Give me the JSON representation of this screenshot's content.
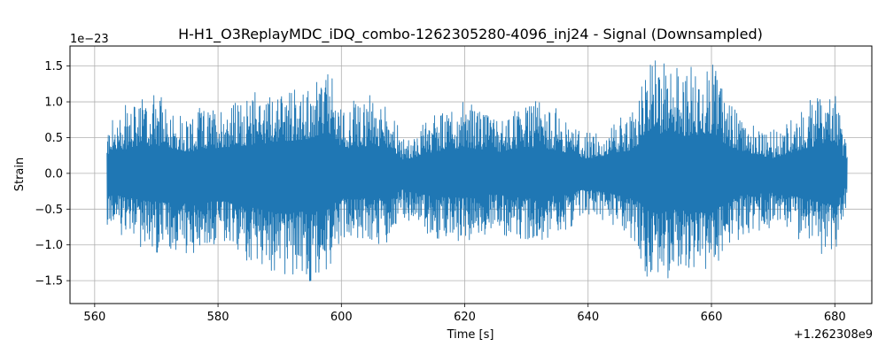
{
  "chart_data": {
    "type": "line",
    "title": "H-H1_O3ReplayMDC_iDQ_combo-1262305280-4096_inj24 - Signal (Downsampled)",
    "xlabel": "Time [s]",
    "ylabel": "Strain",
    "x_offset_label": "+1.262308e9",
    "y_scale_label": "1e−23",
    "xlim": [
      556,
      686
    ],
    "ylim": [
      -1.82,
      1.78
    ],
    "x_ticks": [
      560,
      580,
      600,
      620,
      640,
      660,
      680
    ],
    "x_tick_labels": [
      "560",
      "580",
      "600",
      "620",
      "640",
      "660",
      "680"
    ],
    "y_ticks": [
      -1.5,
      -1.0,
      -0.5,
      0.0,
      0.5,
      1.0,
      1.5
    ],
    "y_tick_labels": [
      "−1.5",
      "−1.0",
      "−0.5",
      "0.0",
      "0.5",
      "1.0",
      "1.5"
    ],
    "grid": true,
    "line_color": "#1f77b4",
    "series": [
      {
        "x_range": [
          562,
          682
        ],
        "envelope": {
          "x": [
            562,
            565,
            570,
            575,
            580,
            585,
            590,
            595,
            598,
            600,
            605,
            608,
            610,
            615,
            620,
            625,
            630,
            635,
            640,
            645,
            648,
            650,
            655,
            660,
            662,
            665,
            670,
            675,
            680,
            682
          ],
          "upper": [
            0.65,
            0.95,
            1.1,
            0.85,
            1.0,
            1.1,
            1.25,
            1.35,
            1.55,
            0.95,
            1.1,
            1.0,
            0.5,
            0.85,
            1.0,
            0.8,
            1.05,
            0.9,
            0.55,
            0.75,
            1.0,
            1.6,
            1.45,
            1.55,
            1.2,
            0.8,
            0.6,
            0.95,
            1.3,
            0.35
          ],
          "lower": [
            -0.75,
            -0.95,
            -1.1,
            -1.2,
            -1.05,
            -1.3,
            -1.55,
            -1.5,
            -1.4,
            -0.95,
            -1.0,
            -0.95,
            -0.6,
            -0.9,
            -0.95,
            -0.8,
            -1.0,
            -0.85,
            -0.6,
            -0.85,
            -1.05,
            -1.55,
            -1.4,
            -1.6,
            -1.2,
            -0.85,
            -0.75,
            -0.95,
            -1.25,
            -0.4
          ]
        }
      }
    ]
  }
}
